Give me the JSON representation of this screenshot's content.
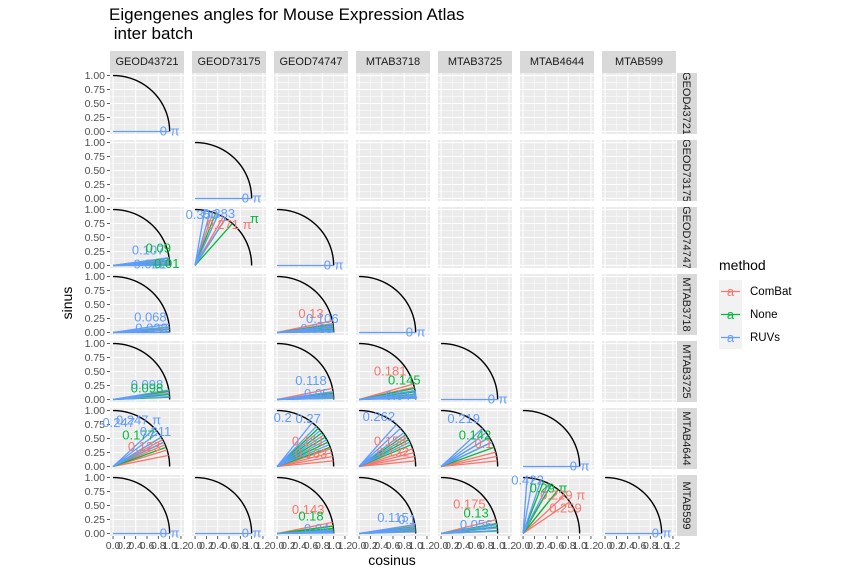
{
  "chart_data": {
    "type": "line",
    "title_line1": "Eigengenes angles for Mouse Expression Atlas",
    "title_line2": " inter batch",
    "xlabel": "cosinus",
    "ylabel": "sinus",
    "xlim": [
      0,
      1.2
    ],
    "ylim": [
      0,
      1
    ],
    "x_ticks": [
      "0.0",
      "0.4",
      "0.8",
      "1.2"
    ],
    "x_minor_ticks": [
      "0.2",
      "0.6",
      "1.0"
    ],
    "y_ticks": [
      "0.00",
      "0.25",
      "0.50",
      "0.75",
      "1.00"
    ],
    "columns": [
      "GEOD43721",
      "GEOD73175",
      "GEOD74747",
      "MTAB3718",
      "MTAB3725",
      "MTAB4644",
      "MTAB599"
    ],
    "rows": [
      "GEOD43721",
      "GEOD73175",
      "GEOD74747",
      "MTAB3718",
      "MTAB3725",
      "MTAB4644",
      "MTAB599"
    ],
    "row_strip_labels": [
      "GEOD43721",
      "GEOD73175",
      "GEOD74747",
      "MTAB3718",
      "MTAB3725",
      "MTAB4644",
      "MTAB599"
    ],
    "legend": {
      "title": "method",
      "items": [
        {
          "name": "ComBat",
          "color": "#F8766D"
        },
        {
          "name": "None",
          "color": "#00BA38"
        },
        {
          "name": "RUVs",
          "color": "#619CFF"
        }
      ],
      "key_glyph": "a"
    },
    "pi_symbol": "π",
    "zero_label": "0",
    "colors": {
      "ComBat": "#F8766D",
      "None": "#00BA38",
      "RUVs": "#619CFF",
      "unit_circle": "#000000"
    },
    "panels": [
      {
        "row": 0,
        "col": 0,
        "lines": [
          {
            "m": "RUVs",
            "a": [
              0
            ]
          }
        ],
        "labels": [
          {
            "m": "RUVs",
            "text": "0 π",
            "x": 1.0,
            "y": 0.0
          }
        ]
      },
      {
        "row": 1,
        "col": 1,
        "lines": [
          {
            "m": "RUVs",
            "a": [
              0
            ]
          }
        ],
        "labels": [
          {
            "m": "RUVs",
            "text": "0 π",
            "x": 1.0,
            "y": 0.0
          }
        ]
      },
      {
        "row": 2,
        "col": 0,
        "lines": [
          {
            "m": "ComBat",
            "a": [
              0.01,
              0.05,
              0.09,
              0.13
            ]
          },
          {
            "m": "None",
            "a": [
              0.01,
              0.04,
              0.08,
              0.13
            ]
          },
          {
            "m": "RUVs",
            "a": [
              0.0,
              0.04,
              0.09,
              0.14
            ]
          }
        ],
        "labels": [
          {
            "m": "RUVs",
            "text": "0.107",
            "x": 0.62,
            "y": 0.27
          },
          {
            "m": "None",
            "text": "0.09",
            "x": 0.8,
            "y": 0.3
          },
          {
            "m": "RUVs",
            "text": "0.022",
            "x": 0.65,
            "y": 0.02
          },
          {
            "m": "None",
            "text": "0.01",
            "x": 0.95,
            "y": 0.03
          }
        ]
      },
      {
        "row": 2,
        "col": 1,
        "lines": [
          {
            "m": "ComBat",
            "a": [
              1.05,
              1.15,
              1.25
            ]
          },
          {
            "m": "None",
            "a": [
              0.85,
              1.0,
              1.2
            ]
          },
          {
            "m": "RUVs",
            "a": [
              1.0,
              1.15,
              1.3,
              1.4
            ]
          }
        ],
        "labels": [
          {
            "m": "RUVs",
            "text": "0.350",
            "x": 0.12,
            "y": 0.9
          },
          {
            "m": "RUVs",
            "text": "0.383",
            "x": 0.42,
            "y": 0.92
          },
          {
            "m": "ComBat",
            "text": "0.271 π",
            "x": 0.6,
            "y": 0.72
          },
          {
            "m": "None",
            "text": "π",
            "x": 1.05,
            "y": 0.83
          }
        ]
      },
      {
        "row": 2,
        "col": 2,
        "lines": [
          {
            "m": "RUVs",
            "a": [
              0
            ]
          }
        ],
        "labels": [
          {
            "m": "RUVs",
            "text": "0 π",
            "x": 1.0,
            "y": 0.0
          }
        ]
      },
      {
        "row": 3,
        "col": 0,
        "lines": [
          {
            "m": "ComBat",
            "a": [
              0.01,
              0.05,
              0.09
            ]
          },
          {
            "m": "None",
            "a": [
              0.01,
              0.06,
              0.1
            ]
          },
          {
            "m": "RUVs",
            "a": [
              0.0,
              0.05,
              0.1,
              0.15
            ]
          }
        ],
        "labels": [
          {
            "m": "RUVs",
            "text": "0.068",
            "x": 0.66,
            "y": 0.27
          },
          {
            "m": "RUVs",
            "text": "0.028",
            "x": 0.68,
            "y": 0.07
          }
        ]
      },
      {
        "row": 3,
        "col": 2,
        "lines": [
          {
            "m": "ComBat",
            "a": [
              0.02,
              0.06,
              0.1,
              0.16,
              0.21
            ]
          },
          {
            "m": "None",
            "a": [
              0.02,
              0.05,
              0.09,
              0.14
            ]
          },
          {
            "m": "RUVs",
            "a": [
              0.01,
              0.04,
              0.08,
              0.12
            ]
          }
        ],
        "labels": [
          {
            "m": "ComBat",
            "text": "0.13",
            "x": 0.6,
            "y": 0.33
          },
          {
            "m": "RUVs",
            "text": "0.106",
            "x": 0.8,
            "y": 0.24
          },
          {
            "m": "RUVs",
            "text": "0.035",
            "x": 0.7,
            "y": 0.06
          }
        ]
      },
      {
        "row": 3,
        "col": 3,
        "lines": [
          {
            "m": "RUVs",
            "a": [
              0
            ]
          }
        ],
        "labels": [
          {
            "m": "RUVs",
            "text": "0 π",
            "x": 1.0,
            "y": 0.0
          }
        ]
      },
      {
        "row": 4,
        "col": 0,
        "lines": [
          {
            "m": "ComBat",
            "a": [
              0.05,
              0.1,
              0.14
            ]
          },
          {
            "m": "None",
            "a": [
              0.04,
              0.09,
              0.15
            ]
          },
          {
            "m": "RUVs",
            "a": [
              0.05,
              0.11,
              0.17
            ]
          }
        ],
        "labels": [
          {
            "m": "RUVs",
            "text": "0.098",
            "x": 0.6,
            "y": 0.26
          },
          {
            "m": "None",
            "text": "0.098",
            "x": 0.6,
            "y": 0.2
          }
        ]
      },
      {
        "row": 4,
        "col": 2,
        "lines": [
          {
            "m": "ComBat",
            "a": [
              0.03,
              0.08,
              0.13,
              0.2
            ]
          },
          {
            "m": "None",
            "a": [
              0.02,
              0.06,
              0.11
            ]
          },
          {
            "m": "RUVs",
            "a": [
              0.02,
              0.05,
              0.09,
              0.14
            ]
          }
        ],
        "labels": [
          {
            "m": "RUVs",
            "text": "0.118",
            "x": 0.6,
            "y": 0.33
          },
          {
            "m": "RUVs",
            "text": "0.05",
            "x": 0.7,
            "y": 0.1
          }
        ]
      },
      {
        "row": 4,
        "col": 3,
        "lines": [
          {
            "m": "ComBat",
            "a": [
              0.05,
              0.1,
              0.15,
              0.22,
              0.28
            ]
          },
          {
            "m": "None",
            "a": [
              0.04,
              0.09,
              0.14,
              0.2
            ]
          },
          {
            "m": "RUVs",
            "a": [
              0.02,
              0.06,
              0.1,
              0.16
            ]
          }
        ],
        "labels": [
          {
            "m": "ComBat",
            "text": "0.181",
            "x": 0.55,
            "y": 0.5
          },
          {
            "m": "None",
            "text": "0.145",
            "x": 0.8,
            "y": 0.34
          },
          {
            "m": "RUVs",
            "text": "0.044",
            "x": 0.75,
            "y": 0.06
          }
        ]
      },
      {
        "row": 4,
        "col": 4,
        "lines": [
          {
            "m": "RUVs",
            "a": [
              0
            ]
          }
        ],
        "labels": [
          {
            "m": "RUVs",
            "text": "0 π",
            "x": 1.0,
            "y": 0.0
          }
        ]
      },
      {
        "row": 5,
        "col": 0,
        "lines": [
          {
            "m": "ComBat",
            "a": [
              0.2,
              0.3,
              0.4,
              0.5
            ]
          },
          {
            "m": "None",
            "a": [
              0.35,
              0.45,
              0.55
            ]
          },
          {
            "m": "RUVs",
            "a": [
              0.45,
              0.55,
              0.65,
              0.75
            ]
          }
        ],
        "labels": [
          {
            "m": "RUVs",
            "text": "0.247",
            "x": 0.1,
            "y": 0.78
          },
          {
            "m": "RUVs",
            "text": "0.247 π",
            "x": 0.45,
            "y": 0.82
          },
          {
            "m": "None",
            "text": "0.177",
            "x": 0.45,
            "y": 0.55
          },
          {
            "m": "ComBat",
            "text": "0.123",
            "x": 0.55,
            "y": 0.35
          },
          {
            "m": "RUVs",
            "text": "0.211",
            "x": 0.75,
            "y": 0.62
          }
        ]
      },
      {
        "row": 5,
        "col": 2,
        "lines": [
          {
            "m": "ComBat",
            "a": [
              0.1,
              0.18,
              0.25,
              0.32
            ]
          },
          {
            "m": "None",
            "a": [
              0.35,
              0.45,
              0.55,
              0.65,
              0.75
            ]
          },
          {
            "m": "RUVs",
            "a": [
              0.4,
              0.5,
              0.6,
              0.7,
              0.8,
              0.9
            ]
          }
        ],
        "labels": [
          {
            "m": "RUVs",
            "text": "0.2",
            "x": 0.1,
            "y": 0.87
          },
          {
            "m": "RUVs",
            "text": "0.27",
            "x": 0.55,
            "y": 0.85
          },
          {
            "m": "ComBat",
            "text": "0.151",
            "x": 0.55,
            "y": 0.45
          },
          {
            "m": "ComBat",
            "text": "0.163",
            "x": 0.6,
            "y": 0.22
          }
        ]
      },
      {
        "row": 5,
        "col": 3,
        "lines": [
          {
            "m": "ComBat",
            "a": [
              0.1,
              0.18,
              0.25,
              0.32
            ]
          },
          {
            "m": "None",
            "a": [
              0.4,
              0.5,
              0.6
            ]
          },
          {
            "m": "RUVs",
            "a": [
              0.45,
              0.55,
              0.65,
              0.75,
              0.85
            ]
          }
        ],
        "labels": [
          {
            "m": "RUVs",
            "text": "0.262",
            "x": 0.35,
            "y": 0.88
          },
          {
            "m": "ComBat",
            "text": "0.158",
            "x": 0.55,
            "y": 0.45
          },
          {
            "m": "ComBat",
            "text": "0.132",
            "x": 0.6,
            "y": 0.25
          }
        ]
      },
      {
        "row": 5,
        "col": 4,
        "lines": [
          {
            "m": "ComBat",
            "a": [
              0.1,
              0.18,
              0.26
            ]
          },
          {
            "m": "None",
            "a": [
              0.35,
              0.45,
              0.55
            ]
          },
          {
            "m": "RUVs",
            "a": [
              0.45,
              0.55,
              0.65,
              0.75
            ]
          }
        ],
        "labels": [
          {
            "m": "RUVs",
            "text": "0.219",
            "x": 0.4,
            "y": 0.85
          },
          {
            "m": "None",
            "text": "0.142",
            "x": 0.6,
            "y": 0.55
          },
          {
            "m": "ComBat",
            "text": "0.1",
            "x": 0.75,
            "y": 0.4
          }
        ]
      },
      {
        "row": 5,
        "col": 5,
        "lines": [
          {
            "m": "RUVs",
            "a": [
              0
            ]
          }
        ],
        "labels": [
          {
            "m": "RUVs",
            "text": "0 π",
            "x": 1.0,
            "y": 0.0
          }
        ]
      },
      {
        "row": 6,
        "col": 0,
        "lines": [
          {
            "m": "RUVs",
            "a": [
              0
            ]
          }
        ],
        "labels": [
          {
            "m": "RUVs",
            "text": "0 π",
            "x": 1.0,
            "y": 0.0
          }
        ]
      },
      {
        "row": 6,
        "col": 1,
        "lines": [
          {
            "m": "RUVs",
            "a": [
              0
            ]
          }
        ],
        "labels": [
          {
            "m": "RUVs",
            "text": "0 π",
            "x": 1.0,
            "y": 0.0
          }
        ]
      },
      {
        "row": 6,
        "col": 2,
        "lines": [
          {
            "m": "ComBat",
            "a": [
              0.03,
              0.08,
              0.14,
              0.2
            ]
          },
          {
            "m": "None",
            "a": [
              0.02,
              0.05,
              0.09,
              0.13
            ]
          },
          {
            "m": "RUVs",
            "a": [
              0.01,
              0.03,
              0.06
            ]
          }
        ],
        "labels": [
          {
            "m": "ComBat",
            "text": "0.143",
            "x": 0.55,
            "y": 0.42
          },
          {
            "m": "None",
            "text": "0.18",
            "x": 0.6,
            "y": 0.3
          },
          {
            "m": "RUVs",
            "text": "0.04",
            "x": 0.7,
            "y": 0.08
          }
        ]
      },
      {
        "row": 6,
        "col": 3,
        "lines": [
          {
            "m": "ComBat",
            "a": [
              0.05,
              0.1,
              0.15
            ]
          },
          {
            "m": "None",
            "a": [
              0.04,
              0.08,
              0.12
            ]
          },
          {
            "m": "RUVs",
            "a": [
              0.03,
              0.07,
              0.11,
              0.16
            ]
          }
        ],
        "labels": [
          {
            "m": "RUVs",
            "text": "0.115",
            "x": 0.6,
            "y": 0.28
          },
          {
            "m": "RUVs",
            "text": "0.1",
            "x": 0.85,
            "y": 0.24
          }
        ]
      },
      {
        "row": 6,
        "col": 4,
        "lines": [
          {
            "m": "ComBat",
            "a": [
              0.1,
              0.17,
              0.25
            ]
          },
          {
            "m": "None",
            "a": [
              0.05,
              0.12,
              0.18
            ]
          },
          {
            "m": "RUVs",
            "a": [
              0.04,
              0.1,
              0.16
            ]
          }
        ],
        "labels": [
          {
            "m": "ComBat",
            "text": "0.175",
            "x": 0.5,
            "y": 0.52
          },
          {
            "m": "None",
            "text": "0.13",
            "x": 0.62,
            "y": 0.36
          },
          {
            "m": "RUVs",
            "text": "0.056",
            "x": 0.62,
            "y": 0.15
          }
        ]
      },
      {
        "row": 6,
        "col": 5,
        "lines": [
          {
            "m": "ComBat",
            "a": [
              0.6,
              0.75,
              0.9,
              1.05
            ]
          },
          {
            "m": "None",
            "a": [
              0.9,
              1.05,
              1.2
            ]
          },
          {
            "m": "RUVs",
            "a": [
              1.1,
              1.25,
              1.4,
              1.5
            ]
          }
        ],
        "labels": [
          {
            "m": "RUVs",
            "text": "0.422",
            "x": 0.08,
            "y": 0.95
          },
          {
            "m": "None",
            "text": "0.29 π",
            "x": 0.45,
            "y": 0.8
          },
          {
            "m": "ComBat",
            "text": "0.229 π",
            "x": 0.7,
            "y": 0.68
          },
          {
            "m": "ComBat",
            "text": "0.259",
            "x": 0.75,
            "y": 0.45
          }
        ]
      },
      {
        "row": 6,
        "col": 6,
        "lines": [
          {
            "m": "RUVs",
            "a": [
              0
            ]
          }
        ],
        "labels": [
          {
            "m": "RUVs",
            "text": "0 π",
            "x": 1.0,
            "y": 0.0
          }
        ]
      }
    ]
  }
}
